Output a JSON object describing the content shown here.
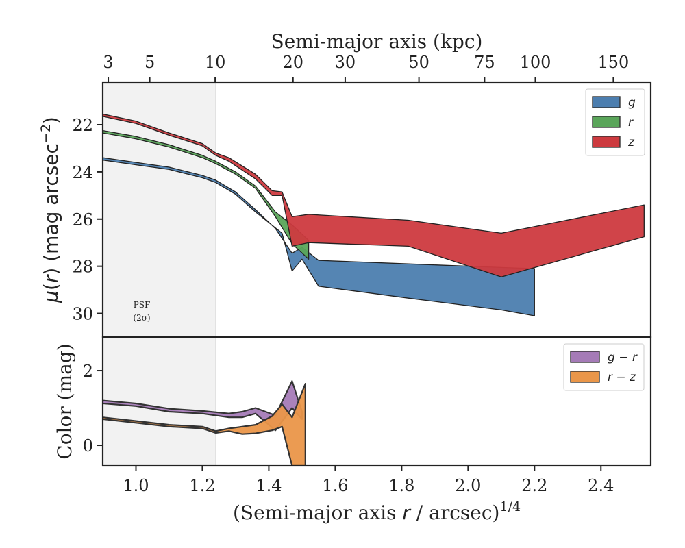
{
  "chart_data": [
    {
      "panel": "surface_brightness",
      "type": "area",
      "xlabel_bottom": "(Semi-major axis r / arcsec)^1/4",
      "xlabel_top": "Semi-major axis (kpc)",
      "ylabel": "μ(r) (mag arcsec^−2)",
      "xlim": [
        0.9,
        2.55
      ],
      "ylim": [
        31.0,
        20.2
      ],
      "y_inverted": true,
      "x_ticks": [
        "1.0",
        "1.2",
        "1.4",
        "1.6",
        "1.8",
        "2.0",
        "2.2",
        "2.4"
      ],
      "y_ticks": [
        "22",
        "24",
        "26",
        "28",
        "30"
      ],
      "top_ticks": [
        {
          "label": "3",
          "kpc": 3
        },
        {
          "label": "5",
          "kpc": 5
        },
        {
          "label": "10",
          "kpc": 10
        },
        {
          "label": "20",
          "kpc": 20
        },
        {
          "label": "30",
          "kpc": 30
        },
        {
          "label": "50",
          "kpc": 50
        },
        {
          "label": "75",
          "kpc": 75
        },
        {
          "label": "100",
          "kpc": 100
        },
        {
          "label": "150",
          "kpc": 150
        }
      ],
      "kpc_per_arcsec": 4.25,
      "psf_region": {
        "x_max": 1.24,
        "label_line1": "PSF",
        "label_line2": "(2σ)"
      },
      "legend_position": "top-right",
      "series": [
        {
          "name": "g",
          "color": "#4C7EAF",
          "upper": [
            [
              0.9,
              23.4
            ],
            [
              1.0,
              23.6
            ],
            [
              1.1,
              23.8
            ],
            [
              1.2,
              24.15
            ],
            [
              1.24,
              24.35
            ],
            [
              1.3,
              24.85
            ],
            [
              1.36,
              25.6
            ],
            [
              1.42,
              26.4
            ],
            [
              1.47,
              27.45
            ],
            [
              1.5,
              27.2
            ],
            [
              1.55,
              27.75
            ],
            [
              1.82,
              27.9
            ],
            [
              2.1,
              28.05
            ],
            [
              2.2,
              28.1
            ]
          ],
          "lower": [
            [
              0.9,
              23.5
            ],
            [
              1.0,
              23.7
            ],
            [
              1.1,
              23.9
            ],
            [
              1.2,
              24.25
            ],
            [
              1.24,
              24.45
            ],
            [
              1.3,
              24.95
            ],
            [
              1.36,
              25.7
            ],
            [
              1.44,
              26.6
            ],
            [
              1.47,
              28.2
            ],
            [
              1.5,
              27.7
            ],
            [
              1.55,
              28.85
            ],
            [
              1.82,
              29.35
            ],
            [
              2.1,
              29.85
            ],
            [
              2.2,
              30.1
            ]
          ]
        },
        {
          "name": "r",
          "color": "#5AA55A",
          "upper": [
            [
              0.9,
              22.25
            ],
            [
              1.0,
              22.5
            ],
            [
              1.1,
              22.85
            ],
            [
              1.2,
              23.3
            ],
            [
              1.24,
              23.55
            ],
            [
              1.3,
              24.0
            ],
            [
              1.36,
              24.6
            ],
            [
              1.42,
              25.7
            ],
            [
              1.47,
              26.25
            ],
            [
              1.52,
              26.9
            ]
          ],
          "lower": [
            [
              0.9,
              22.35
            ],
            [
              1.0,
              22.6
            ],
            [
              1.1,
              22.95
            ],
            [
              1.2,
              23.4
            ],
            [
              1.24,
              23.65
            ],
            [
              1.3,
              24.1
            ],
            [
              1.36,
              24.7
            ],
            [
              1.42,
              25.9
            ],
            [
              1.47,
              27.05
            ],
            [
              1.52,
              27.7
            ]
          ]
        },
        {
          "name": "z",
          "color": "#CD3A3F",
          "upper": [
            [
              0.9,
              21.55
            ],
            [
              1.0,
              21.85
            ],
            [
              1.1,
              22.35
            ],
            [
              1.2,
              22.8
            ],
            [
              1.24,
              23.2
            ],
            [
              1.28,
              23.4
            ],
            [
              1.36,
              24.1
            ],
            [
              1.41,
              24.8
            ],
            [
              1.44,
              24.85
            ],
            [
              1.47,
              25.9
            ],
            [
              1.52,
              25.8
            ],
            [
              1.82,
              26.05
            ],
            [
              2.1,
              26.6
            ],
            [
              2.53,
              25.4
            ]
          ],
          "lower": [
            [
              0.9,
              21.65
            ],
            [
              1.0,
              21.95
            ],
            [
              1.1,
              22.45
            ],
            [
              1.2,
              22.9
            ],
            [
              1.24,
              23.3
            ],
            [
              1.28,
              23.55
            ],
            [
              1.36,
              24.3
            ],
            [
              1.41,
              25.0
            ],
            [
              1.44,
              25.0
            ],
            [
              1.47,
              27.15
            ],
            [
              1.52,
              27.0
            ],
            [
              1.82,
              27.15
            ],
            [
              2.1,
              28.45
            ],
            [
              2.53,
              26.75
            ]
          ]
        }
      ]
    },
    {
      "panel": "color",
      "type": "area",
      "ylabel": "Color (mag)",
      "xlim": [
        0.9,
        2.55
      ],
      "ylim": [
        -0.55,
        2.9
      ],
      "y_ticks": [
        "0",
        "2"
      ],
      "psf_region": {
        "x_max": 1.24
      },
      "legend_position": "top-right",
      "series": [
        {
          "name": "g − r",
          "color": "#A57BB7",
          "upper": [
            [
              0.9,
              1.2
            ],
            [
              1.0,
              1.12
            ],
            [
              1.1,
              0.98
            ],
            [
              1.2,
              0.92
            ],
            [
              1.28,
              0.85
            ],
            [
              1.32,
              0.9
            ],
            [
              1.36,
              1.0
            ],
            [
              1.42,
              0.8
            ],
            [
              1.47,
              1.72
            ],
            [
              1.5,
              0.9
            ]
          ],
          "lower": [
            [
              0.9,
              1.12
            ],
            [
              1.0,
              1.05
            ],
            [
              1.1,
              0.9
            ],
            [
              1.2,
              0.85
            ],
            [
              1.28,
              0.75
            ],
            [
              1.32,
              0.75
            ],
            [
              1.36,
              0.85
            ],
            [
              1.42,
              0.4
            ],
            [
              1.47,
              1.0
            ],
            [
              1.5,
              0.7
            ]
          ]
        },
        {
          "name": "r − z",
          "color": "#EA9649",
          "upper": [
            [
              0.9,
              0.75
            ],
            [
              1.0,
              0.65
            ],
            [
              1.1,
              0.55
            ],
            [
              1.2,
              0.5
            ],
            [
              1.24,
              0.38
            ],
            [
              1.28,
              0.45
            ],
            [
              1.32,
              0.5
            ],
            [
              1.36,
              0.55
            ],
            [
              1.41,
              0.78
            ],
            [
              1.44,
              1.1
            ],
            [
              1.47,
              0.75
            ],
            [
              1.51,
              1.65
            ]
          ],
          "lower": [
            [
              0.9,
              0.7
            ],
            [
              1.0,
              0.6
            ],
            [
              1.1,
              0.5
            ],
            [
              1.2,
              0.45
            ],
            [
              1.24,
              0.33
            ],
            [
              1.28,
              0.38
            ],
            [
              1.32,
              0.3
            ],
            [
              1.36,
              0.32
            ],
            [
              1.41,
              0.4
            ],
            [
              1.44,
              0.5
            ],
            [
              1.47,
              -0.55
            ],
            [
              1.51,
              -0.55
            ]
          ]
        }
      ]
    }
  ]
}
